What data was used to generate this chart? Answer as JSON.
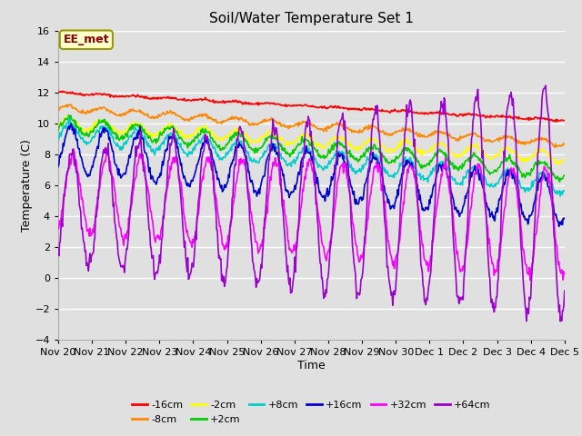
{
  "title": "Soil/Water Temperature Set 1",
  "xlabel": "Time",
  "ylabel": "Temperature (C)",
  "ylim": [
    -4,
    16
  ],
  "yticks": [
    -4,
    -2,
    0,
    2,
    4,
    6,
    8,
    10,
    12,
    14,
    16
  ],
  "background_color": "#e0e0e0",
  "plot_bg_color": "#e0e0e0",
  "grid_color": "#ffffff",
  "annotation_text": "EE_met",
  "annotation_bg": "#ffffcc",
  "annotation_border": "#999900",
  "series": {
    "-16cm": {
      "color": "#ff0000"
    },
    "-8cm": {
      "color": "#ff8800"
    },
    "-2cm": {
      "color": "#ffff00"
    },
    "+2cm": {
      "color": "#00cc00"
    },
    "+8cm": {
      "color": "#00cccc"
    },
    "+16cm": {
      "color": "#0000cc"
    },
    "+32cm": {
      "color": "#ff00ff"
    },
    "+64cm": {
      "color": "#9900cc"
    }
  },
  "x_labels": [
    "Nov 20",
    "Nov 21",
    "Nov 22",
    "Nov 23",
    "Nov 24",
    "Nov 25",
    "Nov 26",
    "Nov 27",
    "Nov 28",
    "Nov 29",
    "Nov 30",
    "Dec 1",
    "Dec 2",
    "Dec 3",
    "Dec 4",
    "Dec 5"
  ],
  "n_days": 15,
  "points_per_day": 48
}
